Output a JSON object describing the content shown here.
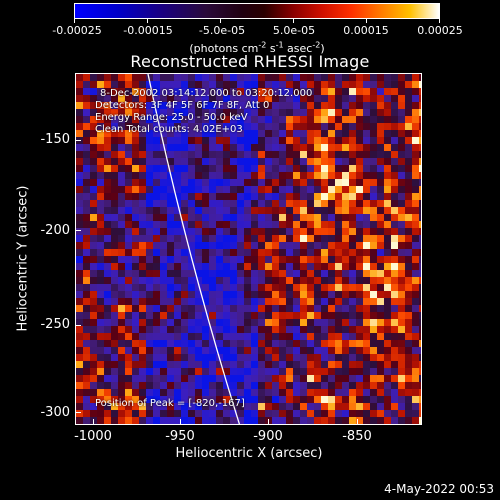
{
  "colorbar": {
    "tick_labels": [
      "-0.00025",
      "-0.00015",
      "-5.0e-05",
      "5.0e-05",
      "0.00015",
      "0.00025"
    ],
    "units_prefix": "(photons cm",
    "units_exp1": "-2",
    "units_mid1": " s",
    "units_exp2": "-1",
    "units_mid2": " asec",
    "units_exp3": "-2",
    "units_suffix": ")",
    "range": [
      -0.00025,
      0.00025
    ]
  },
  "plot": {
    "title": "Reconstructed RHESSI Image",
    "annotations": {
      "time_range": "8-Dec-2002 03:14:12.000 to 03:20:12.000",
      "detectors": "Detectors: 3F 4F 5F 6F 7F 8F, Att 0",
      "energy": "Energy Range: 25.0 - 50.0 keV",
      "method": "Clean    Total counts: 4.02E+03",
      "peak": "Position of Peak = [-820,-167]"
    },
    "x_axis": {
      "label": "Heliocentric X (arcsec)",
      "ticks": [
        "-1000",
        "-950",
        "-900",
        "-850"
      ]
    },
    "y_axis": {
      "label": "Heliocentric Y (arcsec)",
      "ticks": [
        "-150",
        "-200",
        "-250",
        "-300"
      ]
    }
  },
  "timestamp": "4-May-2022 00:53",
  "colors": {
    "background": "#000000",
    "foreground": "#ffffff",
    "limb_line": "#ffffff"
  }
}
